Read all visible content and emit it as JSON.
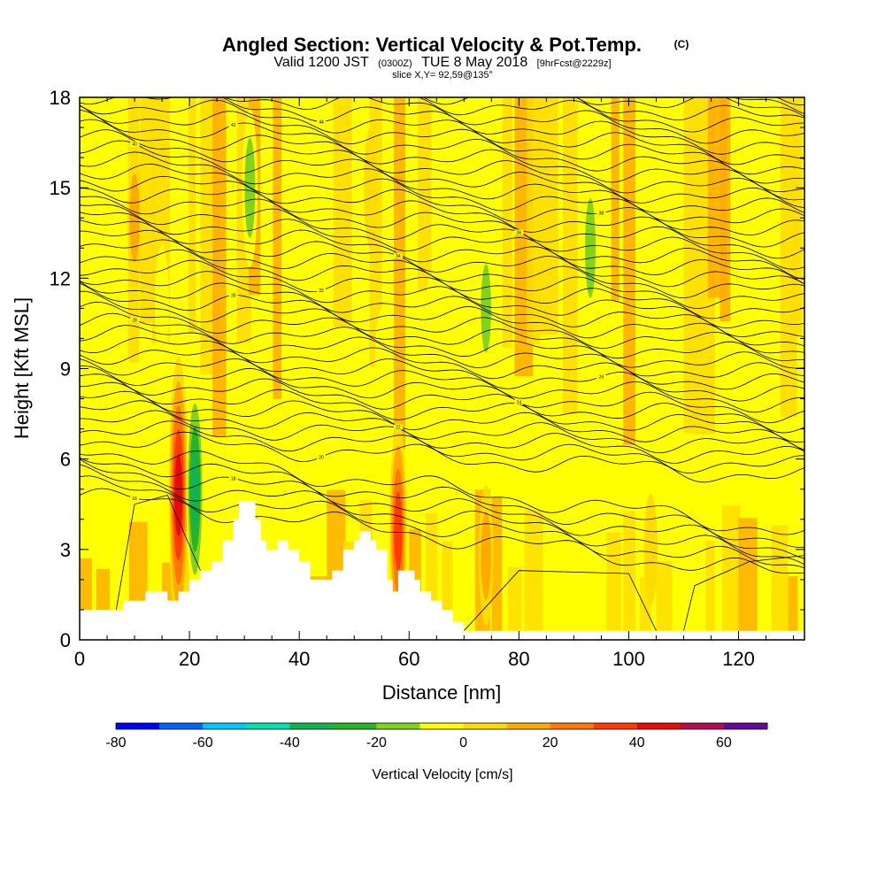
{
  "chart_data": {
    "type": "heatmap",
    "title": "Angled Section: Vertical Velocity & Pot.Temp.",
    "title_unit": "(C)",
    "subtitle": {
      "valid": "Valid 1200 JST",
      "utc": "(0300Z)",
      "date": "TUE 8 May 2018",
      "forecast": "[9hrFcst@2229z]"
    },
    "slice_label": "slice X,Y= 92,59@135°",
    "xlabel": "Distance [nm]",
    "ylabel": "Height [Kft MSL]",
    "xlim": [
      0,
      132
    ],
    "ylim": [
      0,
      18
    ],
    "x_ticks": [
      0,
      20,
      40,
      60,
      80,
      100,
      120
    ],
    "y_ticks": [
      0,
      3,
      6,
      9,
      12,
      15,
      18
    ],
    "grid": false,
    "colorbar": {
      "label": "Vertical Velocity [cm/s]",
      "min": -80,
      "max": 70,
      "step": 10,
      "ticks": [
        -80,
        -60,
        -40,
        -20,
        0,
        20,
        40,
        60
      ],
      "colors": [
        "#0000ff",
        "#0064ff",
        "#00c8ff",
        "#00e0b0",
        "#10b450",
        "#28b428",
        "#82d21e",
        "#ffff00",
        "#ffdc00",
        "#ffaa00",
        "#ff7800",
        "#ff3c00",
        "#e60a0a",
        "#b40a50",
        "#640a96"
      ]
    },
    "terrain": [
      [
        0,
        1.0
      ],
      [
        2,
        1.0
      ],
      [
        4,
        1.0
      ],
      [
        6,
        1.0
      ],
      [
        8,
        1.3
      ],
      [
        10,
        1.3
      ],
      [
        12,
        1.6
      ],
      [
        14,
        1.6
      ],
      [
        16,
        1.3
      ],
      [
        18,
        1.6
      ],
      [
        20,
        2.0
      ],
      [
        22,
        2.3
      ],
      [
        24,
        2.6
      ],
      [
        26,
        3.3
      ],
      [
        28,
        4.0
      ],
      [
        29,
        4.6
      ],
      [
        31,
        4.6
      ],
      [
        32,
        4.0
      ],
      [
        33,
        3.3
      ],
      [
        34,
        3.0
      ],
      [
        35,
        3.0
      ],
      [
        36,
        3.3
      ],
      [
        38,
        3.0
      ],
      [
        40,
        2.6
      ],
      [
        42,
        2.0
      ],
      [
        44,
        2.0
      ],
      [
        46,
        2.3
      ],
      [
        48,
        3.0
      ],
      [
        50,
        3.3
      ],
      [
        51,
        3.6
      ],
      [
        52,
        3.6
      ],
      [
        53,
        3.3
      ],
      [
        54,
        3.0
      ],
      [
        56,
        2.0
      ],
      [
        57,
        1.6
      ],
      [
        58,
        2.3
      ],
      [
        60,
        2.3
      ],
      [
        61,
        2.0
      ],
      [
        62,
        1.6
      ],
      [
        64,
        1.3
      ],
      [
        66,
        1.0
      ],
      [
        68,
        0.6
      ],
      [
        70,
        0.3
      ],
      [
        132,
        0.3
      ]
    ],
    "updrafts": [
      {
        "x": 18,
        "y": 4.8,
        "value": 50
      },
      {
        "x": 10,
        "y": 14.0,
        "value": 15
      },
      {
        "x": 58,
        "y": 3.6,
        "value": 35
      },
      {
        "x": 74,
        "y": 2.8,
        "value": 15
      },
      {
        "x": 53,
        "y": 15.0,
        "value": 10
      },
      {
        "x": 104,
        "y": 3.0,
        "value": 8
      }
    ],
    "downdrafts": [
      {
        "x": 21,
        "y": 5.0,
        "value": -35
      },
      {
        "x": 31,
        "y": 15.0,
        "value": -20
      },
      {
        "x": 93,
        "y": 13.0,
        "value": -20
      },
      {
        "x": 74,
        "y": 11.0,
        "value": -15
      },
      {
        "x": 15,
        "y": 11.0,
        "value": -12
      },
      {
        "x": 64,
        "y": 10.0,
        "value": -12
      },
      {
        "x": 55,
        "y": 9.0,
        "value": -10
      },
      {
        "x": 8,
        "y": 8.0,
        "value": -10
      }
    ],
    "pot_temp_contours": {
      "min": 16,
      "max": 64,
      "step": 1,
      "labels": [
        "16",
        "18",
        "20",
        "22",
        "24",
        "26",
        "28",
        "30",
        "32",
        "34",
        "36",
        "38",
        "40",
        "42",
        "44",
        "46",
        "48"
      ]
    }
  }
}
